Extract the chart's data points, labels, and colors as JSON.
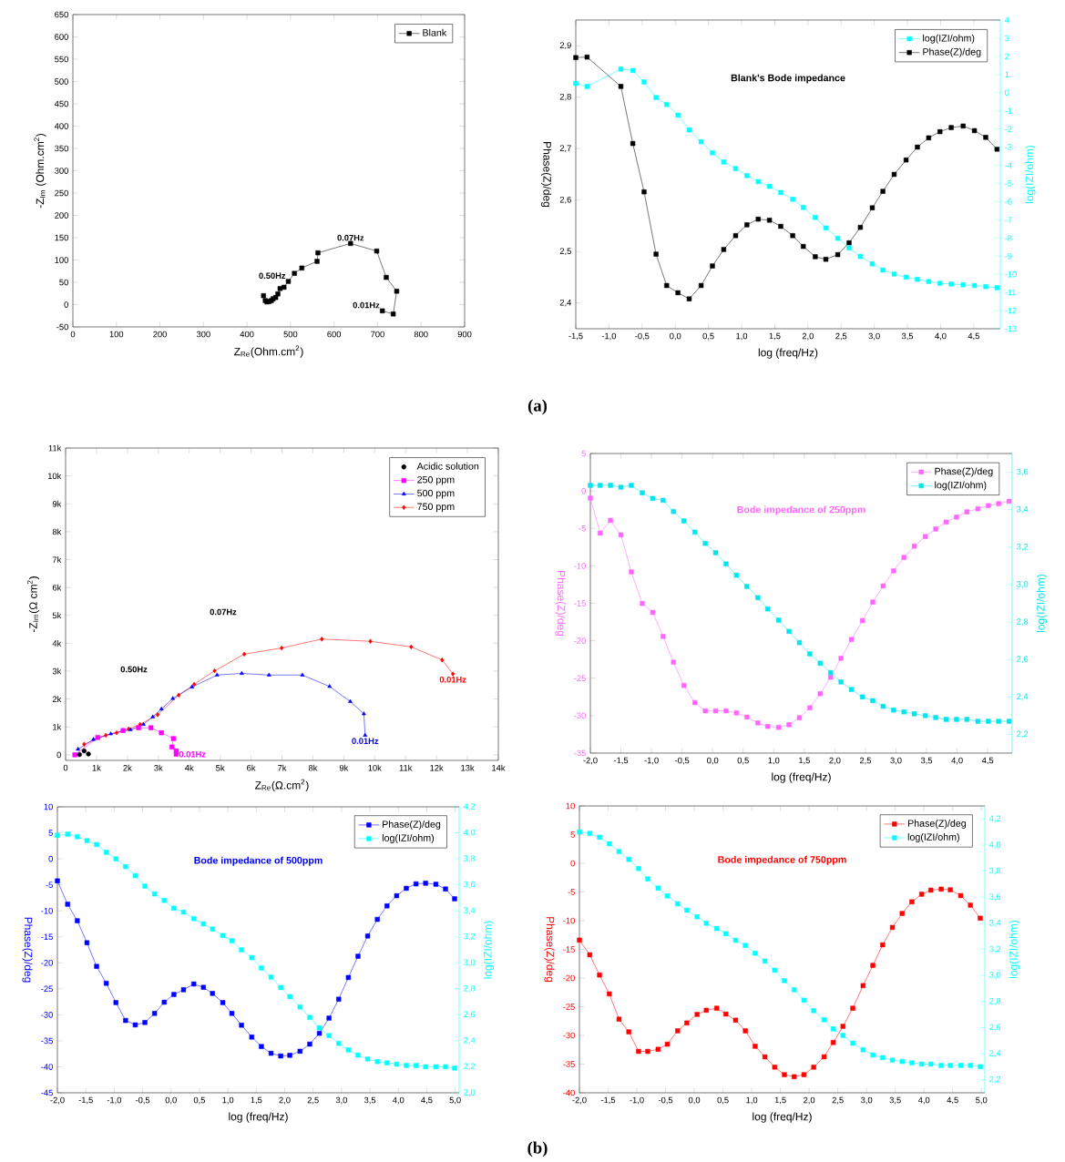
{
  "chart_data": [
    {
      "type": "line",
      "xlabel": "Z$_{Re}$(Ohm.cm$^{2}$)",
      "ylabel": "-Z$_{Im}$ (Ohm.cm$^{2}$)",
      "xlim": [
        0,
        900
      ],
      "ylim": [
        -50,
        650
      ],
      "xticks": [
        0,
        100,
        200,
        300,
        400,
        500,
        600,
        700,
        800,
        900
      ],
      "yticks": [
        -50,
        0,
        50,
        100,
        150,
        200,
        250,
        300,
        350,
        400,
        450,
        500,
        550,
        600,
        650
      ],
      "marker": "square",
      "line_style": "solid",
      "legend": "top right",
      "series": [
        {
          "name": "Blank",
          "color": "#000000",
          "x": [
            438,
            442,
            446,
            451,
            456,
            460,
            466,
            471,
            476,
            485,
            495,
            509,
            526,
            561,
            563,
            638,
            698,
            720,
            744,
            736,
            711
          ],
          "values": [
            20,
            9,
            6,
            7,
            9,
            13,
            16,
            24,
            36,
            39,
            52,
            70,
            82,
            97,
            116,
            137,
            120,
            61,
            30,
            -21,
            -14
          ]
        }
      ],
      "annotations": [
        {
          "text": "0.50Hz",
          "x": 495,
          "y": 52
        },
        {
          "text": "0.07Hz",
          "x": 638,
          "y": 137
        },
        {
          "text": "0.01Hz",
          "x": 711,
          "y": -14
        },
        "(a)"
      ]
    },
    {
      "type": "line",
      "title": "Blank's Bode impedance",
      "xlabel": "log (freq/Hz)",
      "ylabel": "Phase(Z)/deg",
      "y2label": "log(IZI/ohm)",
      "xlim": [
        -1.5,
        4.9
      ],
      "ylim": [
        2.35,
        2.95
      ],
      "y2lim": [
        -13,
        4
      ],
      "xticks": [
        {
          "value": -1.5,
          "label": "-1,5"
        },
        {
          "value": -1,
          "label": "-1,0"
        },
        {
          "value": -0.5,
          "label": "-0,5"
        },
        {
          "value": 0,
          "label": "0,0"
        },
        {
          "value": 0.5,
          "label": "0,5"
        },
        {
          "value": 1,
          "label": "1,0"
        },
        {
          "value": 1.5,
          "label": "1,5"
        },
        {
          "value": 2,
          "label": "2,0"
        },
        {
          "value": 2.5,
          "label": "2,5"
        },
        {
          "value": 3,
          "label": "3,0"
        },
        {
          "value": 3.5,
          "label": "3,5"
        },
        {
          "value": 4,
          "label": "4,0"
        },
        {
          "value": 4.5,
          "label": "4,5"
        }
      ],
      "yticks": [
        {
          "value": 2.4,
          "label": "2,4"
        },
        {
          "value": 2.5,
          "label": "2,5"
        },
        {
          "value": 2.6,
          "label": "2,6"
        },
        {
          "value": 2.7,
          "label": "2,7"
        },
        {
          "value": 2.8,
          "label": "2,8"
        },
        {
          "value": 2.9,
          "label": "2,9"
        }
      ],
      "y2ticks": [
        -13,
        -12,
        -11,
        -10,
        -9,
        -8,
        -7,
        -6,
        -5,
        -4,
        -3,
        -2,
        -1,
        0,
        1,
        2,
        3,
        4
      ],
      "marker": "square",
      "line_style": "solid",
      "legend": "top right",
      "x": [
        -1.5,
        -1.33,
        -0.82,
        -0.64,
        -0.47,
        -0.29,
        -0.13,
        0.04,
        0.21,
        0.39,
        0.56,
        0.73,
        0.91,
        1.08,
        1.25,
        1.42,
        1.59,
        1.77,
        1.93,
        2.11,
        2.27,
        2.45,
        2.62,
        2.79,
        2.97,
        3.13,
        3.3,
        3.48,
        3.65,
        3.82,
        3.99,
        4.16,
        4.34,
        4.51,
        4.68,
        4.85
      ],
      "series": [
        {
          "name": "log(IZI/ohm)",
          "color": "#00ffff",
          "axis": "y2",
          "values": [
            0.51,
            0.34,
            1.3,
            1.22,
            0.59,
            -0.27,
            -0.65,
            -1.24,
            -2.05,
            -2.7,
            -3.31,
            -3.82,
            -4.18,
            -4.57,
            -4.9,
            -5.16,
            -5.5,
            -5.87,
            -6.32,
            -6.87,
            -7.45,
            -8.02,
            -8.55,
            -9.02,
            -9.43,
            -9.77,
            -9.99,
            -10.16,
            -10.28,
            -10.4,
            -10.5,
            -10.54,
            -10.58,
            -10.62,
            -10.68,
            -10.74
          ]
        },
        {
          "name": "Phase(Z)/deg",
          "color": "#000000",
          "values": [
            2.877,
            2.878,
            2.821,
            2.71,
            2.616,
            2.495,
            2.434,
            2.42,
            2.408,
            2.434,
            2.472,
            2.504,
            2.531,
            2.552,
            2.563,
            2.561,
            2.549,
            2.531,
            2.51,
            2.49,
            2.485,
            2.494,
            2.517,
            2.547,
            2.585,
            2.617,
            2.65,
            2.678,
            2.703,
            2.721,
            2.733,
            2.741,
            2.744,
            2.735,
            2.722,
            2.699
          ]
        }
      ]
    },
    {
      "type": "line",
      "xlabel": "Z$_{Re}$(Ω.cm$^{2}$)",
      "ylabel": "-Z$_{Im}$(Ω cm$^{2}$)",
      "xlim": [
        0,
        14000
      ],
      "ylim": [
        -200,
        11000
      ],
      "xticks": [
        0,
        {
          "value": 1000,
          "label": "1k"
        },
        {
          "value": 2000,
          "label": "2k"
        },
        {
          "value": 3000,
          "label": "3k"
        },
        {
          "value": 4000,
          "label": "4k"
        },
        {
          "value": 5000,
          "label": "5k"
        },
        {
          "value": 6000,
          "label": "6k"
        },
        {
          "value": 7000,
          "label": "7k"
        },
        {
          "value": 8000,
          "label": "8k"
        },
        {
          "value": 9000,
          "label": "9k"
        },
        {
          "value": 10000,
          "label": "10k"
        },
        {
          "value": 11000,
          "label": "11k"
        },
        {
          "value": 12000,
          "label": "12k"
        },
        {
          "value": 13000,
          "label": "13k"
        },
        {
          "value": 14000,
          "label": "14k"
        }
      ],
      "yticks": [
        0,
        {
          "value": 1000,
          "label": "1k"
        },
        {
          "value": 2000,
          "label": "2k"
        },
        {
          "value": 3000,
          "label": "3k"
        },
        {
          "value": 4000,
          "label": "4k"
        },
        {
          "value": 5000,
          "label": "5k"
        },
        {
          "value": 6000,
          "label": "6k"
        },
        {
          "value": 7000,
          "label": "7k"
        },
        {
          "value": 8000,
          "label": "8k"
        },
        {
          "value": 9000,
          "label": "9k"
        },
        {
          "value": 10000,
          "label": "10k"
        },
        {
          "value": 11000,
          "label": "11k"
        }
      ],
      "line_style": "solid",
      "legend": "top right",
      "series": [
        {
          "name": "Acidic solution",
          "color": "#000000",
          "type": "scatter",
          "marker": "circle",
          "x": [
            450,
            600,
            740
          ],
          "values": [
            10,
            140,
            30
          ]
        },
        {
          "name": "250 ppm",
          "color": "#ff00ff",
          "marker": "square",
          "x": [
            300,
            1040,
            1860,
            2360,
            2760,
            3100,
            3490,
            3440,
            3580,
            3580
          ],
          "values": [
            0,
            620,
            870,
            970,
            970,
            790,
            580,
            280,
            140,
            20
          ]
        },
        {
          "name": "500 ppm",
          "color": "#0000ff",
          "marker": "triangle",
          "x": [
            400,
            900,
            1460,
            2100,
            2520,
            2820,
            3100,
            3470,
            4090,
            4900,
            5700,
            6580,
            7660,
            8540,
            9210,
            9650,
            9690
          ],
          "values": [
            200,
            550,
            750,
            900,
            1090,
            1360,
            1640,
            2020,
            2430,
            2860,
            2920,
            2860,
            2860,
            2450,
            1910,
            1470,
            700
          ]
        },
        {
          "name": "750 ppm",
          "color": "#ff0000",
          "marker": "diamond",
          "x": [
            600,
            1300,
            1650,
            2040,
            2410,
            2980,
            3660,
            4160,
            4820,
            5780,
            6990,
            8290,
            9860,
            11180,
            12180,
            12530
          ],
          "values": [
            380,
            700,
            790,
            930,
            1090,
            1440,
            2140,
            2530,
            3010,
            3610,
            3830,
            4150,
            4070,
            3870,
            3400,
            2900
          ]
        }
      ],
      "annotations": [
        "0.50Hz",
        "0.07Hz",
        {
          "text": "0.01Hz",
          "x": 3580,
          "y": 20
        },
        {
          "text": "0.01Hz",
          "x": 9690,
          "y": 700
        },
        {
          "text": "0.01Hz",
          "x": 12530,
          "y": 2900
        },
        "(b)"
      ]
    },
    {
      "type": "line",
      "title": "Bode impedance of 250ppm",
      "xlabel": "log (freq/Hz)",
      "ylabel": "Phase(Z)/deg",
      "y2label": "log(IZI/ohm)",
      "xlim": [
        -2,
        4.9
      ],
      "ylim": [
        -35,
        5
      ],
      "y2lim": [
        2.1,
        3.7
      ],
      "xticks": [
        {
          "value": -2,
          "label": "-2,0"
        },
        {
          "value": -1.5,
          "label": "-1,5"
        },
        {
          "value": -1,
          "label": "-1,0"
        },
        {
          "value": -0.5,
          "label": "-0,5"
        },
        {
          "value": 0,
          "label": "0,0"
        },
        {
          "value": 0.5,
          "label": "0,5"
        },
        {
          "value": 1,
          "label": "1,0"
        },
        {
          "value": 1.5,
          "label": "1,5"
        },
        {
          "value": 2,
          "label": "2,0"
        },
        {
          "value": 2.5,
          "label": "2,5"
        },
        {
          "value": 3,
          "label": "3,0"
        },
        {
          "value": 3.5,
          "label": "3,5"
        },
        {
          "value": 4,
          "label": "4,0"
        },
        {
          "value": 4.5,
          "label": "4,5"
        }
      ],
      "yticks": [
        -35,
        -30,
        -25,
        -20,
        -15,
        -10,
        -5,
        0,
        5
      ],
      "y2ticks": [
        {
          "value": 2.2,
          "label": "2,2"
        },
        {
          "value": 2.4,
          "label": "2,4"
        },
        {
          "value": 2.6,
          "label": "2,6"
        },
        {
          "value": 2.8,
          "label": "2,8"
        },
        {
          "value": 3.0,
          "label": "3,0"
        },
        {
          "value": 3.2,
          "label": "3,2"
        },
        {
          "value": 3.4,
          "label": "3,4"
        },
        {
          "value": 3.6,
          "label": "3,6"
        }
      ],
      "marker": "square",
      "line_style": "solid",
      "legend": "top right",
      "x": [
        -2.0,
        -1.84,
        -1.67,
        -1.5,
        -1.33,
        -1.15,
        -0.98,
        -0.81,
        -0.64,
        -0.47,
        -0.29,
        -0.12,
        0.05,
        0.22,
        0.39,
        0.56,
        0.74,
        0.9,
        1.08,
        1.25,
        1.42,
        1.59,
        1.76,
        1.93,
        2.1,
        2.27,
        2.45,
        2.62,
        2.79,
        2.96,
        3.13,
        3.3,
        3.48,
        3.65,
        3.82,
        3.99,
        4.16,
        4.34,
        4.51,
        4.68,
        4.85
      ],
      "series": [
        {
          "name": "Phase(Z)/deg",
          "color": "#ff66ff",
          "values": [
            -0.96,
            -5.63,
            -3.93,
            -5.86,
            -10.81,
            -15.02,
            -16.21,
            -19.42,
            -22.86,
            -25.97,
            -28.26,
            -29.36,
            -29.36,
            -29.36,
            -29.64,
            -30.19,
            -30.97,
            -31.43,
            -31.56,
            -31.2,
            -30.28,
            -28.95,
            -27.07,
            -24.87,
            -22.35,
            -19.83,
            -17.31,
            -14.84,
            -12.69,
            -10.67,
            -8.88,
            -7.37,
            -6.09,
            -5.08,
            -4.16,
            -3.48,
            -2.79,
            -2.38,
            -1.96,
            -1.69,
            -1.37
          ]
        },
        {
          "name": "log(IZI/ohm)",
          "color": "#00e5ee",
          "axis": "y2",
          "values": [
            3.53,
            3.53,
            3.53,
            3.52,
            3.53,
            3.49,
            3.46,
            3.45,
            3.39,
            3.34,
            3.28,
            3.22,
            3.17,
            3.11,
            3.05,
            2.99,
            2.93,
            2.87,
            2.81,
            2.75,
            2.69,
            2.63,
            2.58,
            2.53,
            2.48,
            2.44,
            2.4,
            2.38,
            2.35,
            2.33,
            2.32,
            2.31,
            2.3,
            2.29,
            2.28,
            2.28,
            2.28,
            2.27,
            2.27,
            2.27,
            2.27
          ]
        }
      ]
    },
    {
      "type": "line",
      "title": "Bode impedance of 500ppm",
      "xlabel": "log (freq/Hz)",
      "ylabel": "Phase(Z)/deg",
      "y2label": "log(IZI/ohm)",
      "xlim": [
        -2,
        5.07
      ],
      "ylim": [
        -45,
        10
      ],
      "y2lim": [
        2.0,
        4.2
      ],
      "xticks": [
        {
          "value": -2,
          "label": "-2,0"
        },
        {
          "value": -1.5,
          "label": "-1,5"
        },
        {
          "value": -1,
          "label": "-1,0"
        },
        {
          "value": -0.5,
          "label": "-0,5"
        },
        {
          "value": 0,
          "label": "0,0"
        },
        {
          "value": 0.5,
          "label": "0,5"
        },
        {
          "value": 1,
          "label": "1,0"
        },
        {
          "value": 1.5,
          "label": "1,5"
        },
        {
          "value": 2,
          "label": "2,0"
        },
        {
          "value": 2.5,
          "label": "2,5"
        },
        {
          "value": 3,
          "label": "3,0"
        },
        {
          "value": 3.5,
          "label": "3,5"
        },
        {
          "value": 4,
          "label": "4,0"
        },
        {
          "value": 4.5,
          "label": "4,5"
        },
        {
          "value": 5,
          "label": "5,0"
        }
      ],
      "yticks": [
        -45,
        -40,
        -35,
        -30,
        -25,
        -20,
        -15,
        -10,
        -5,
        0,
        5,
        10
      ],
      "y2ticks": [
        {
          "value": 2.0,
          "label": "2,0"
        },
        {
          "value": 2.2,
          "label": "2,2"
        },
        {
          "value": 2.4,
          "label": "2,4"
        },
        {
          "value": 2.6,
          "label": "2,6"
        },
        {
          "value": 2.8,
          "label": "2,8"
        },
        {
          "value": 3.0,
          "label": "3,0"
        },
        {
          "value": 3.2,
          "label": "3,2"
        },
        {
          "value": 3.4,
          "label": "3,4"
        },
        {
          "value": 3.6,
          "label": "3,6"
        },
        {
          "value": 3.8,
          "label": "3,8"
        },
        {
          "value": 4.0,
          "label": "4,0"
        },
        {
          "value": 4.2,
          "label": "4,2"
        }
      ],
      "marker": "square",
      "line_style": "solid",
      "legend": "top right",
      "x": [
        -2.0,
        -1.82,
        -1.65,
        -1.48,
        -1.31,
        -1.14,
        -0.97,
        -0.8,
        -0.63,
        -0.46,
        -0.29,
        -0.12,
        0.05,
        0.22,
        0.4,
        0.57,
        0.73,
        0.91,
        1.07,
        1.24,
        1.42,
        1.59,
        1.76,
        1.93,
        2.09,
        2.27,
        2.44,
        2.61,
        2.78,
        2.95,
        3.12,
        3.29,
        3.46,
        3.63,
        3.8,
        3.97,
        4.14,
        4.31,
        4.48,
        4.66,
        4.83,
        4.99
      ],
      "series": [
        {
          "name": "Phase(Z)/deg",
          "color": "#0000ff",
          "values": [
            -4.24,
            -8.73,
            -11.91,
            -16.14,
            -20.69,
            -23.94,
            -27.65,
            -31.09,
            -31.94,
            -31.48,
            -29.73,
            -27.58,
            -26.09,
            -25.18,
            -24.07,
            -24.72,
            -25.89,
            -27.65,
            -29.73,
            -32.0,
            -34.28,
            -36.1,
            -37.4,
            -37.92,
            -37.79,
            -37.01,
            -35.64,
            -33.56,
            -30.64,
            -27.0,
            -22.83,
            -18.74,
            -14.84,
            -11.65,
            -9.05,
            -7.1,
            -5.67,
            -4.82,
            -4.69,
            -4.89,
            -5.8,
            -7.69
          ]
        },
        {
          "name": "log(IZI/ohm)",
          "color": "#00ffff",
          "axis": "y2",
          "values": [
            3.98,
            3.99,
            3.97,
            3.94,
            3.91,
            3.85,
            3.8,
            3.74,
            3.67,
            3.59,
            3.53,
            3.48,
            3.42,
            3.39,
            3.34,
            3.3,
            3.26,
            3.21,
            3.17,
            3.1,
            3.04,
            2.96,
            2.89,
            2.81,
            2.74,
            2.66,
            2.58,
            2.5,
            2.44,
            2.38,
            2.33,
            2.29,
            2.26,
            2.24,
            2.23,
            2.22,
            2.21,
            2.21,
            2.2,
            2.2,
            2.2,
            2.19
          ]
        }
      ]
    },
    {
      "type": "line",
      "title": "Bode impedance of 750ppm",
      "xlabel": "log (freq/Hz)",
      "ylabel": "Phase(Z)/deg",
      "y2label": "log(IZI/ohm)",
      "xlim": [
        -2,
        5.06
      ],
      "ylim": [
        -40,
        10
      ],
      "y2lim": [
        2.1,
        4.3
      ],
      "xticks": [
        {
          "value": -2,
          "label": "-2,0"
        },
        {
          "value": -1.5,
          "label": "-1,5"
        },
        {
          "value": -1,
          "label": "-1,0"
        },
        {
          "value": -0.5,
          "label": "-0,5"
        },
        {
          "value": 0,
          "label": "0,0"
        },
        {
          "value": 0.5,
          "label": "0,5"
        },
        {
          "value": 1,
          "label": "1,0"
        },
        {
          "value": 1.5,
          "label": "1,5"
        },
        {
          "value": 2,
          "label": "2,0"
        },
        {
          "value": 2.5,
          "label": "2,5"
        },
        {
          "value": 3,
          "label": "3,0"
        },
        {
          "value": 3.5,
          "label": "3,5"
        },
        {
          "value": 4,
          "label": "4,0"
        },
        {
          "value": 4.5,
          "label": "4,5"
        },
        {
          "value": 5,
          "label": "5,0"
        }
      ],
      "yticks": [
        -40,
        -35,
        -30,
        -25,
        -20,
        -15,
        -10,
        -5,
        0,
        5,
        10
      ],
      "y2ticks": [
        {
          "value": 2.2,
          "label": "2,2"
        },
        {
          "value": 2.4,
          "label": "2,4"
        },
        {
          "value": 2.6,
          "label": "2,6"
        },
        {
          "value": 2.8,
          "label": "2,8"
        },
        {
          "value": 3.0,
          "label": "3,0"
        },
        {
          "value": 3.2,
          "label": "3,2"
        },
        {
          "value": 3.4,
          "label": "3,4"
        },
        {
          "value": 3.6,
          "label": "3,6"
        },
        {
          "value": 3.8,
          "label": "3,8"
        },
        {
          "value": 4.0,
          "label": "4,0"
        },
        {
          "value": 4.2,
          "label": "4,2"
        }
      ],
      "marker": "square",
      "line_style": "solid",
      "legend": "top right",
      "x": [
        -2.0,
        -1.82,
        -1.65,
        -1.48,
        -1.31,
        -1.14,
        -0.97,
        -0.81,
        -0.63,
        -0.47,
        -0.29,
        -0.13,
        0.05,
        0.21,
        0.39,
        0.55,
        0.72,
        0.89,
        1.06,
        1.23,
        1.4,
        1.57,
        1.74,
        1.91,
        2.08,
        2.26,
        2.42,
        2.59,
        2.76,
        2.94,
        3.11,
        3.28,
        3.45,
        3.62,
        3.79,
        3.96,
        4.12,
        4.3,
        4.46,
        4.64,
        4.81,
        4.98
      ],
      "series": [
        {
          "name": "Phase(Z)/deg",
          "color": "#ff0000",
          "values": [
            -13.39,
            -15.95,
            -19.47,
            -22.76,
            -27.17,
            -29.38,
            -32.78,
            -32.78,
            -32.42,
            -31.53,
            -29.2,
            -27.83,
            -26.34,
            -25.62,
            -25.26,
            -26.28,
            -27.35,
            -29.2,
            -31.89,
            -33.74,
            -35.53,
            -36.84,
            -37.2,
            -36.84,
            -35.53,
            -33.74,
            -31.23,
            -28.42,
            -25.26,
            -21.32,
            -17.8,
            -14.22,
            -11.18,
            -8.74,
            -6.71,
            -5.39,
            -4.68,
            -4.5,
            -4.62,
            -5.63,
            -7.3,
            -9.57
          ]
        },
        {
          "name": "log(IZI/ohm)",
          "color": "#00ffff",
          "axis": "y2",
          "values": [
            4.1,
            4.09,
            4.06,
            4.01,
            3.95,
            3.89,
            3.82,
            3.74,
            3.67,
            3.61,
            3.55,
            3.5,
            3.45,
            3.4,
            3.36,
            3.32,
            3.27,
            3.23,
            3.17,
            3.11,
            3.04,
            2.96,
            2.89,
            2.81,
            2.73,
            2.66,
            2.59,
            2.54,
            2.48,
            2.43,
            2.39,
            2.37,
            2.35,
            2.34,
            2.33,
            2.32,
            2.32,
            2.31,
            2.31,
            2.31,
            2.31,
            2.3
          ]
        }
      ]
    }
  ]
}
